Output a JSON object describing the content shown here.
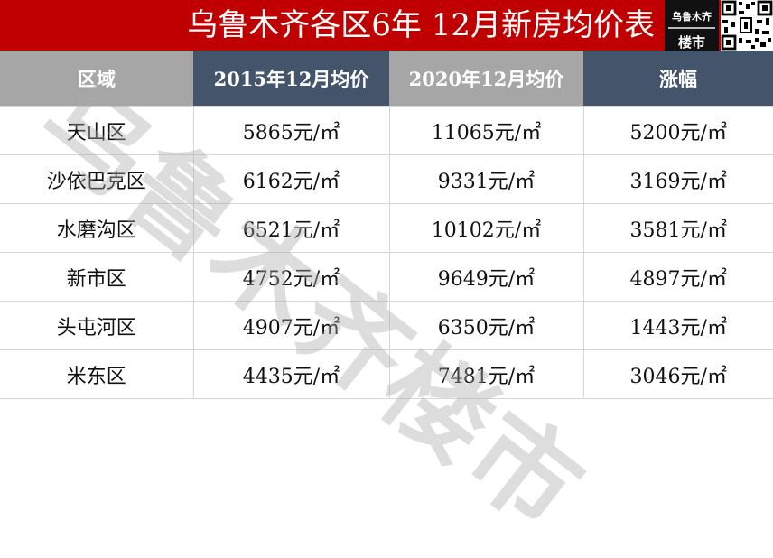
{
  "title": "乌鲁木齐各区6年  12月新房均价表",
  "logo": {
    "line1": "乌鲁木齐",
    "line2": "楼市"
  },
  "watermark": "乌鲁木齐楼市",
  "colors": {
    "title_bg": "#c00000",
    "header_gray": "#a6a6a6",
    "header_slate": "#44546a"
  },
  "table": {
    "headers": [
      "区域",
      "2015年12月均价",
      "2020年12月均价",
      "涨幅"
    ],
    "rows": [
      [
        "天山区",
        "5865元/㎡",
        "11065元/㎡",
        "5200元/㎡"
      ],
      [
        "沙依巴克区",
        "6162元/㎡",
        "9331元/㎡",
        "3169元/㎡"
      ],
      [
        "水磨沟区",
        "6521元/㎡",
        "10102元/㎡",
        "3581元/㎡"
      ],
      [
        "新市区",
        "4752元/㎡",
        "9649元/㎡",
        "4897元/㎡"
      ],
      [
        "头屯河区",
        "4907元/㎡",
        "6350元/㎡",
        "1443元/㎡"
      ],
      [
        "米东区",
        "4435元/㎡",
        "7481元/㎡",
        "3046元/㎡"
      ]
    ]
  }
}
